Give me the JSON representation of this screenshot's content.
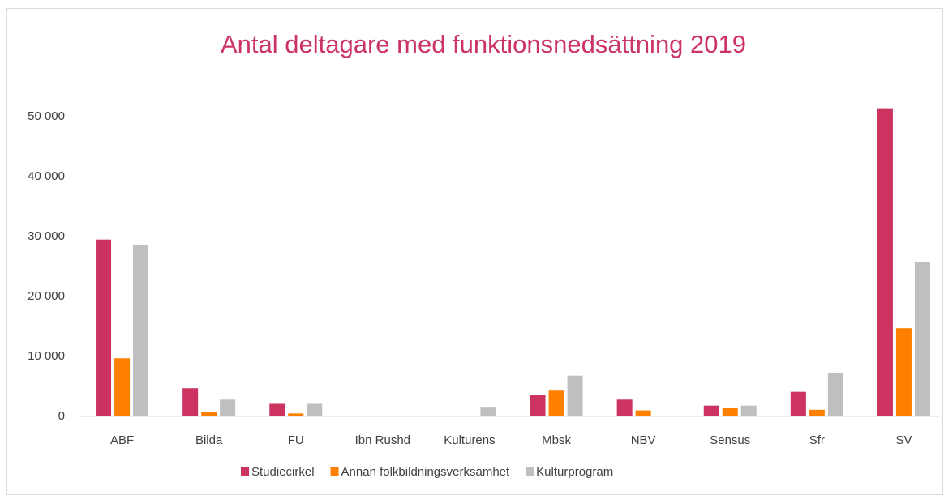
{
  "chart_data": {
    "type": "bar",
    "title": "Antal deltagare med funktionsnedsättning 2019",
    "categories": [
      "ABF",
      "Bilda",
      "FU",
      "Ibn Rushd",
      "Kulturens",
      "Mbsk",
      "NBV",
      "Sensus",
      "Sfr",
      "SV"
    ],
    "series": [
      {
        "name": "Studiecirkel",
        "color": "#cc3361",
        "values": [
          29500,
          4700,
          2100,
          0,
          0,
          3600,
          2800,
          1800,
          4100,
          51400
        ]
      },
      {
        "name": "Annan folkbildningsverksamhet",
        "color": "#ff8000",
        "values": [
          9700,
          800,
          500,
          0,
          0,
          4300,
          1000,
          1400,
          1100,
          14700
        ]
      },
      {
        "name": "Kulturprogram",
        "color": "#bfbfbf",
        "values": [
          28600,
          2800,
          2100,
          0,
          1600,
          6800,
          0,
          1800,
          7200,
          25800
        ]
      }
    ],
    "ylim": [
      0,
      55000
    ],
    "yticks": [
      0,
      {
        "value": 10000,
        "label": "10 000"
      },
      {
        "value": 20000,
        "label": "20 000"
      },
      {
        "value": 30000,
        "label": "30 000"
      },
      {
        "value": 40000,
        "label": "40 000"
      },
      {
        "value": 50000,
        "label": "50 000"
      }
    ],
    "grid": false,
    "legend": "bottom"
  }
}
